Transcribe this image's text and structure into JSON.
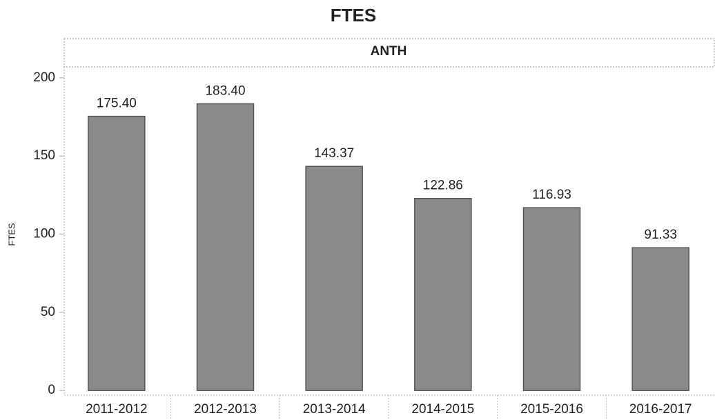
{
  "chart_data": {
    "type": "bar",
    "title": "FTES",
    "panel": "ANTH",
    "y_label": "FTES",
    "categories": [
      "2011-2012",
      "2012-2013",
      "2013-2014",
      "2014-2015",
      "2015-2016",
      "2016-2017"
    ],
    "values": [
      175.4,
      183.4,
      143.37,
      122.86,
      116.93,
      91.33
    ],
    "value_labels": [
      "175.40",
      "183.40",
      "143.37",
      "122.86",
      "116.93",
      "91.33"
    ],
    "color": "#8a8a8a",
    "ylim": [
      -3,
      207
    ],
    "yticks": [
      0,
      50,
      100,
      150,
      200
    ],
    "grid": false
  }
}
